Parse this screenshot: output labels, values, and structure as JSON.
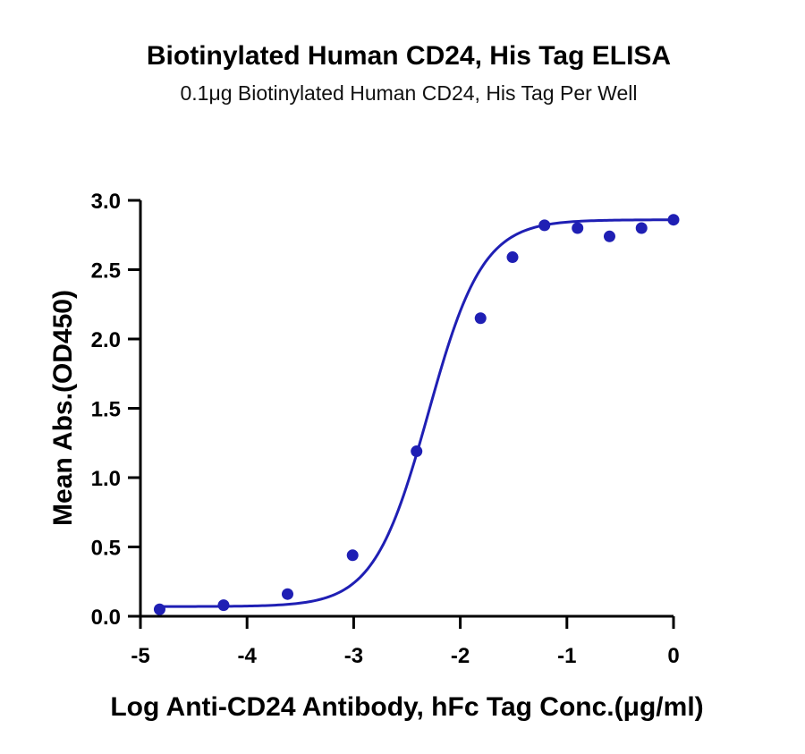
{
  "chart_data": {
    "type": "scatter",
    "title": "Biotinylated Human CD24, His Tag ELISA",
    "subtitle": "0.1μg Biotinylated Human CD24, His Tag Per Well",
    "xlabel": "Log  Anti-CD24 Antibody, hFc Tag Conc.(μg/ml)",
    "ylabel": "Mean Abs.(OD450)",
    "xlim": [
      -5,
      0
    ],
    "ylim": [
      0,
      3.0
    ],
    "xticks": [
      "-5",
      "-4",
      "-3",
      "-2",
      "-1",
      "0"
    ],
    "yticks": [
      "0.0",
      "0.5",
      "1.0",
      "1.5",
      "2.0",
      "2.5",
      "3.0"
    ],
    "grid": false,
    "colors": {
      "series": "#1f1fb4",
      "axis": "#000000"
    },
    "series": [
      {
        "points": [
          {
            "x": -4.82,
            "y": 0.05
          },
          {
            "x": -4.22,
            "y": 0.08
          },
          {
            "x": -3.62,
            "y": 0.16
          },
          {
            "x": -3.01,
            "y": 0.44
          },
          {
            "x": -2.41,
            "y": 1.19
          },
          {
            "x": -1.81,
            "y": 2.15
          },
          {
            "x": -1.51,
            "y": 2.59
          },
          {
            "x": -1.21,
            "y": 2.82
          },
          {
            "x": -0.9,
            "y": 2.8
          },
          {
            "x": -0.6,
            "y": 2.74
          },
          {
            "x": -0.3,
            "y": 2.8
          },
          {
            "x": 0.0,
            "y": 2.86
          }
        ],
        "fit": {
          "model": "4PL",
          "bottom": 0.07,
          "top": 2.86,
          "logEC50": -2.3,
          "hill": 1.7
        }
      }
    ]
  }
}
